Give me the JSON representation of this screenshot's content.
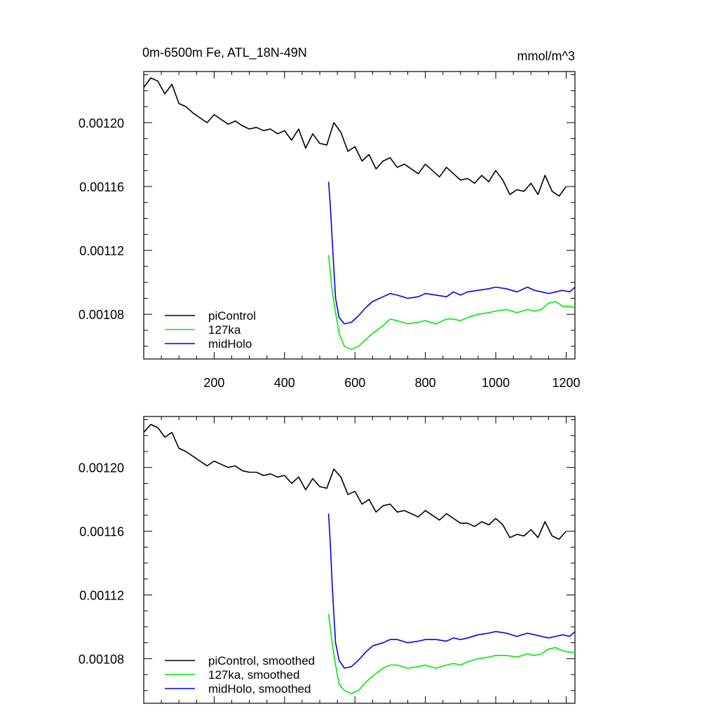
{
  "figure": {
    "title_left": "0m-6500m Fe, ATL_18N-49N",
    "title_right": "mmol/m^3"
  },
  "chart_data": [
    {
      "type": "line",
      "xlim": [
        0,
        1225
      ],
      "ylim": [
        0.001052,
        0.001232
      ],
      "xticks": [
        200,
        400,
        600,
        800,
        1000,
        1200
      ],
      "xtick_labels": [
        "200",
        "400",
        "600",
        "800",
        "1000",
        "1200"
      ],
      "yticks": [
        0.00108,
        0.00112,
        0.00116,
        0.0012
      ],
      "ytick_labels": [
        "0.00108",
        "0.00112",
        "0.00116",
        "0.00120"
      ],
      "legend_position": "bottom-left",
      "series": [
        {
          "name": "piControl",
          "color": "#000000",
          "x": [
            0,
            20,
            40,
            60,
            80,
            100,
            120,
            140,
            160,
            180,
            200,
            220,
            240,
            260,
            280,
            300,
            320,
            340,
            360,
            380,
            400,
            420,
            440,
            460,
            480,
            500,
            520,
            540,
            560,
            580,
            600,
            620,
            640,
            660,
            680,
            700,
            720,
            740,
            760,
            780,
            800,
            820,
            840,
            860,
            880,
            900,
            920,
            940,
            960,
            980,
            1000,
            1020,
            1040,
            1060,
            1080,
            1100,
            1120,
            1140,
            1160,
            1180,
            1200
          ],
          "y": [
            0.001222,
            0.001228,
            0.001226,
            0.001218,
            0.001224,
            0.001212,
            0.00121,
            0.001206,
            0.001203,
            0.0012,
            0.001205,
            0.001202,
            0.001199,
            0.001201,
            0.001198,
            0.001196,
            0.001197,
            0.001195,
            0.001196,
            0.001193,
            0.001195,
            0.001189,
            0.001196,
            0.001184,
            0.001193,
            0.001187,
            0.001186,
            0.0012,
            0.001194,
            0.001182,
            0.001185,
            0.001176,
            0.00118,
            0.001171,
            0.001176,
            0.001178,
            0.001172,
            0.001174,
            0.001171,
            0.001168,
            0.001174,
            0.00117,
            0.001166,
            0.001172,
            0.001168,
            0.001164,
            0.001165,
            0.001162,
            0.001167,
            0.001163,
            0.00117,
            0.001164,
            0.001155,
            0.001158,
            0.001157,
            0.001162,
            0.001155,
            0.001167,
            0.001157,
            0.001154,
            0.00116
          ]
        },
        {
          "name": "127ka",
          "color": "#00ee00",
          "x": [
            525,
            535,
            545,
            555,
            570,
            590,
            610,
            630,
            650,
            680,
            700,
            720,
            750,
            780,
            800,
            830,
            860,
            880,
            900,
            920,
            950,
            980,
            1000,
            1030,
            1060,
            1090,
            1110,
            1130,
            1150,
            1170,
            1190,
            1210,
            1225
          ],
          "y": [
            0.001117,
            0.001095,
            0.001081,
            0.001068,
            0.00106,
            0.001058,
            0.00106,
            0.001064,
            0.001068,
            0.001073,
            0.001077,
            0.001076,
            0.001074,
            0.001075,
            0.001076,
            0.001074,
            0.001077,
            0.001077,
            0.001076,
            0.001078,
            0.00108,
            0.001081,
            0.001082,
            0.001083,
            0.001081,
            0.001083,
            0.001082,
            0.001083,
            0.001087,
            0.001088,
            0.001085,
            0.001085,
            0.001084
          ]
        },
        {
          "name": "midHolo",
          "color": "#0000ee",
          "x": [
            525,
            530,
            535,
            540,
            545,
            555,
            570,
            590,
            610,
            630,
            650,
            680,
            700,
            720,
            750,
            780,
            800,
            830,
            860,
            880,
            900,
            920,
            950,
            980,
            1000,
            1030,
            1060,
            1090,
            1110,
            1130,
            1150,
            1170,
            1190,
            1210,
            1225
          ],
          "y": [
            0.001163,
            0.001148,
            0.001128,
            0.001109,
            0.00109,
            0.001078,
            0.001074,
            0.001075,
            0.001079,
            0.001084,
            0.001088,
            0.001091,
            0.001093,
            0.001092,
            0.00109,
            0.001091,
            0.001093,
            0.001092,
            0.001091,
            0.001094,
            0.001092,
            0.001094,
            0.001095,
            0.001096,
            0.001097,
            0.001096,
            0.001094,
            0.001097,
            0.001095,
            0.001094,
            0.001093,
            0.001094,
            0.001095,
            0.001094,
            0.001097
          ]
        }
      ]
    },
    {
      "type": "line",
      "xlim": [
        0,
        1225
      ],
      "ylim": [
        0.001052,
        0.001232
      ],
      "xticks": [
        200,
        400,
        600,
        800,
        1000,
        1200
      ],
      "xtick_labels": [],
      "yticks": [
        0.00108,
        0.00112,
        0.00116,
        0.0012
      ],
      "ytick_labels": [
        "0.00108",
        "0.00112",
        "0.00116",
        "0.00120"
      ],
      "legend_position": "bottom-left",
      "series": [
        {
          "name": "piControl, smoothed",
          "color": "#000000",
          "x": [
            0,
            20,
            40,
            60,
            80,
            100,
            120,
            140,
            160,
            180,
            200,
            220,
            240,
            260,
            280,
            300,
            320,
            340,
            360,
            380,
            400,
            420,
            440,
            460,
            480,
            500,
            520,
            540,
            560,
            580,
            600,
            620,
            640,
            660,
            680,
            700,
            720,
            740,
            760,
            780,
            800,
            820,
            840,
            860,
            880,
            900,
            920,
            940,
            960,
            980,
            1000,
            1020,
            1040,
            1060,
            1080,
            1100,
            1120,
            1140,
            1160,
            1180,
            1200
          ],
          "y": [
            0.001222,
            0.001227,
            0.001225,
            0.001219,
            0.001222,
            0.001212,
            0.00121,
            0.001207,
            0.001204,
            0.001201,
            0.001204,
            0.001202,
            0.0012,
            0.001201,
            0.001198,
            0.001197,
            0.001197,
            0.001195,
            0.001196,
            0.001194,
            0.001195,
            0.00119,
            0.001194,
            0.001186,
            0.001193,
            0.001188,
            0.001187,
            0.001199,
            0.001194,
            0.001183,
            0.001185,
            0.001177,
            0.00118,
            0.001172,
            0.001176,
            0.001177,
            0.001172,
            0.001173,
            0.001171,
            0.001169,
            0.001173,
            0.00117,
            0.001167,
            0.001171,
            0.001168,
            0.001165,
            0.001165,
            0.001163,
            0.001166,
            0.001164,
            0.001168,
            0.001164,
            0.001156,
            0.001158,
            0.001157,
            0.001161,
            0.001156,
            0.001166,
            0.001157,
            0.001155,
            0.00116
          ]
        },
        {
          "name": "127ka, smoothed",
          "color": "#00ee00",
          "x": [
            525,
            535,
            545,
            555,
            570,
            590,
            610,
            630,
            650,
            680,
            700,
            720,
            750,
            780,
            800,
            830,
            860,
            880,
            900,
            920,
            950,
            980,
            1000,
            1030,
            1060,
            1090,
            1110,
            1130,
            1150,
            1170,
            1190,
            1210,
            1225
          ],
          "y": [
            0.001108,
            0.00109,
            0.001076,
            0.001064,
            0.00106,
            0.001058,
            0.00106,
            0.001065,
            0.001069,
            0.001074,
            0.001076,
            0.001076,
            0.001074,
            0.001075,
            0.001076,
            0.001074,
            0.001076,
            0.001077,
            0.001076,
            0.001078,
            0.00108,
            0.001081,
            0.001082,
            0.001082,
            0.001081,
            0.001083,
            0.001082,
            0.001083,
            0.001086,
            0.001087,
            0.001085,
            0.001084,
            0.001084
          ]
        },
        {
          "name": "midHolo, smoothed",
          "color": "#0000ee",
          "x": [
            525,
            530,
            535,
            540,
            545,
            555,
            570,
            590,
            610,
            630,
            650,
            680,
            700,
            720,
            750,
            780,
            800,
            830,
            860,
            880,
            900,
            920,
            950,
            980,
            1000,
            1030,
            1060,
            1090,
            1110,
            1130,
            1150,
            1170,
            1190,
            1210,
            1225
          ],
          "y": [
            0.001171,
            0.001152,
            0.001128,
            0.001108,
            0.00109,
            0.001079,
            0.001074,
            0.001075,
            0.001079,
            0.001084,
            0.001088,
            0.00109,
            0.001092,
            0.001092,
            0.00109,
            0.001091,
            0.001092,
            0.001092,
            0.001091,
            0.001093,
            0.001092,
            0.001093,
            0.001095,
            0.001096,
            0.001097,
            0.001096,
            0.001094,
            0.001096,
            0.001095,
            0.001094,
            0.001093,
            0.001094,
            0.001095,
            0.001094,
            0.001097
          ]
        }
      ]
    }
  ]
}
